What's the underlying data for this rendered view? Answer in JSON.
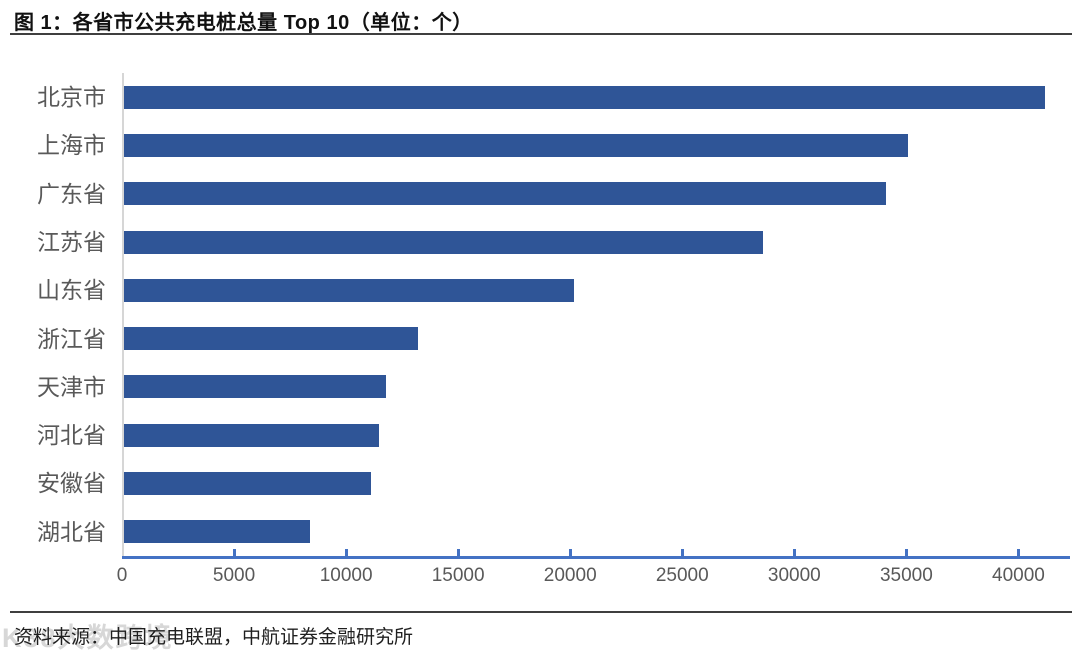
{
  "page": {
    "title": "图 1：各省市公共充电桩总量 Top 10（单位：个）",
    "source": "资料来源：中国充电联盟，中航证券金融研究所",
    "watermark": "K38大数跨境"
  },
  "chart_data": {
    "type": "bar",
    "orientation": "horizontal",
    "title": "各省市公共充电桩总量 Top 10",
    "unit": "个",
    "categories": [
      "北京市",
      "上海市",
      "广东省",
      "江苏省",
      "山东省",
      "浙江省",
      "天津市",
      "河北省",
      "安徽省",
      "湖北省"
    ],
    "values": [
      41100,
      35000,
      34000,
      28500,
      20100,
      13100,
      11700,
      11400,
      11000,
      8300
    ],
    "xlim": [
      0,
      42300
    ],
    "xticks": [
      0,
      5000,
      10000,
      15000,
      20000,
      25000,
      30000,
      35000,
      40000
    ],
    "bar_color": "#2F5597",
    "axis_line_color": "#4472C4",
    "baseline_color": "#D6D6D6",
    "label_color": "#595959",
    "grid": false,
    "legend": "none"
  }
}
